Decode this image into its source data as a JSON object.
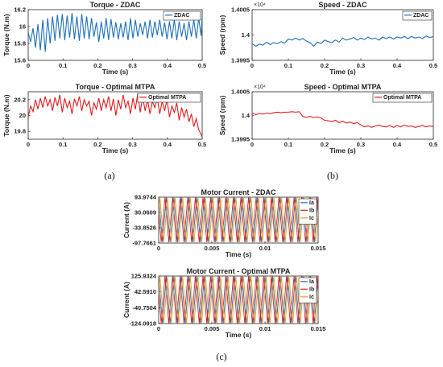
{
  "captions": [
    "(a)",
    "(b)",
    "(c)"
  ],
  "chart_data": [
    {
      "type": "line",
      "title": "Torque - ZDAC",
      "xlabel": "Time (s)",
      "ylabel": "Torque (N.m)",
      "xlim": [
        0,
        0.5
      ],
      "ylim": [
        15.6,
        16.2
      ],
      "xticks": [
        "0",
        "0.1",
        "0.2",
        "0.3",
        "0.4",
        "0.5"
      ],
      "yticks": [
        "15.6",
        "15.8",
        "16",
        "16.2"
      ],
      "legend_position": "top-right",
      "series": [
        {
          "name": "ZDAC",
          "color": "#1f6fb8",
          "x": [
            0,
            0.007,
            0.014,
            0.021,
            0.028,
            0.035,
            0.042,
            0.049,
            0.056,
            0.063,
            0.07,
            0.077,
            0.084,
            0.091,
            0.098,
            0.105,
            0.112,
            0.119,
            0.126,
            0.133,
            0.14,
            0.147,
            0.154,
            0.161,
            0.168,
            0.175,
            0.182,
            0.189,
            0.196,
            0.203,
            0.21,
            0.217,
            0.224,
            0.231,
            0.238,
            0.245,
            0.252,
            0.259,
            0.266,
            0.273,
            0.28,
            0.287,
            0.294,
            0.301,
            0.308,
            0.315,
            0.322,
            0.329,
            0.336,
            0.343,
            0.35,
            0.357,
            0.364,
            0.371,
            0.378,
            0.385,
            0.392,
            0.399,
            0.406,
            0.413,
            0.42,
            0.427,
            0.434,
            0.441,
            0.448,
            0.455,
            0.462,
            0.469,
            0.476,
            0.483,
            0.49,
            0.497,
            0.5
          ],
          "y": [
            15.93,
            15.82,
            15.98,
            15.75,
            16.03,
            15.72,
            16.08,
            15.7,
            16.1,
            15.8,
            16.12,
            15.83,
            16.14,
            15.86,
            16.15,
            15.84,
            16.13,
            15.87,
            16.16,
            15.85,
            16.12,
            15.83,
            16.15,
            15.86,
            16.12,
            15.85,
            16.1,
            15.88,
            16.05,
            15.82,
            16.06,
            15.86,
            16.1,
            15.84,
            16.09,
            15.87,
            16.05,
            15.85,
            16.04,
            15.87,
            16.06,
            15.84,
            16.1,
            15.86,
            16.08,
            15.88,
            16.04,
            15.9,
            16.06,
            15.86,
            16.08,
            15.87,
            16.06,
            15.9,
            16.08,
            15.88,
            16.05,
            15.85,
            16.06,
            15.86,
            16.08,
            15.84,
            16.06,
            15.88,
            16.04,
            15.84,
            16.06,
            15.88,
            16.08,
            15.86,
            16.1,
            15.89,
            16.12
          ]
        }
      ]
    },
    {
      "type": "line",
      "title": "Speed - ZDAC",
      "xlabel": "Time (s)",
      "ylabel": "Speed (rpm)",
      "exponent_label": "×10⁴",
      "xlim": [
        0,
        0.5
      ],
      "ylim": [
        1.3995,
        1.4005
      ],
      "xticks": [
        "0",
        "0.1",
        "0.2",
        "0.3",
        "0.4",
        "0.5"
      ],
      "yticks": [
        "1.3995",
        "1.4",
        "1.4005"
      ],
      "legend_position": "top-right",
      "series": [
        {
          "name": "ZDAC",
          "color": "#1f6fb8",
          "x": [
            0,
            0.01,
            0.02,
            0.03,
            0.04,
            0.05,
            0.06,
            0.07,
            0.08,
            0.09,
            0.1,
            0.11,
            0.12,
            0.13,
            0.14,
            0.15,
            0.16,
            0.17,
            0.18,
            0.19,
            0.2,
            0.21,
            0.22,
            0.23,
            0.24,
            0.25,
            0.26,
            0.27,
            0.28,
            0.29,
            0.3,
            0.31,
            0.32,
            0.33,
            0.34,
            0.35,
            0.36,
            0.37,
            0.38,
            0.39,
            0.4,
            0.41,
            0.42,
            0.43,
            0.44,
            0.45,
            0.46,
            0.47,
            0.48,
            0.49,
            0.5
          ],
          "y": [
            1.39983,
            1.39978,
            1.39982,
            1.3998,
            1.39986,
            1.39981,
            1.39985,
            1.39983,
            1.39987,
            1.39984,
            1.39992,
            1.3999,
            1.39994,
            1.3999,
            1.39993,
            1.39988,
            1.39985,
            1.39978,
            1.39986,
            1.39983,
            1.3999,
            1.39987,
            1.39985,
            1.3999,
            1.39986,
            1.39994,
            1.3999,
            1.39992,
            1.39995,
            1.3999,
            1.39994,
            1.39991,
            1.39996,
            1.39992,
            1.39994,
            1.3999,
            1.39996,
            1.39993,
            1.39996,
            1.39992,
            1.39996,
            1.39994,
            1.39997,
            1.39993,
            1.39997,
            1.39994,
            1.39996,
            1.39993,
            1.39998,
            1.39995,
            1.39997
          ]
        }
      ]
    },
    {
      "type": "line",
      "title": "Torque - Optimal MTPA",
      "xlabel": "Time (s)",
      "ylabel": "Torque (N.m)",
      "xlim": [
        0,
        0.5
      ],
      "ylim": [
        19.7,
        20.3
      ],
      "xticks": [
        "0",
        "0.1",
        "0.2",
        "0.3",
        "0.4",
        "0.5"
      ],
      "yticks": [
        "19.8",
        "20",
        "20.2"
      ],
      "legend_position": "top-right",
      "series": [
        {
          "name": "Optimal MTPA",
          "color": "#e41a1c",
          "x": [
            0,
            0.007,
            0.014,
            0.021,
            0.028,
            0.035,
            0.042,
            0.049,
            0.056,
            0.063,
            0.07,
            0.077,
            0.084,
            0.091,
            0.098,
            0.105,
            0.112,
            0.119,
            0.126,
            0.133,
            0.14,
            0.147,
            0.154,
            0.161,
            0.168,
            0.175,
            0.182,
            0.189,
            0.196,
            0.203,
            0.21,
            0.217,
            0.224,
            0.231,
            0.238,
            0.245,
            0.252,
            0.259,
            0.266,
            0.273,
            0.28,
            0.287,
            0.294,
            0.301,
            0.308,
            0.315,
            0.322,
            0.329,
            0.336,
            0.343,
            0.35,
            0.357,
            0.364,
            0.371,
            0.378,
            0.385,
            0.392,
            0.399,
            0.406,
            0.413,
            0.42,
            0.427,
            0.434,
            0.441,
            0.448,
            0.455,
            0.462,
            0.469,
            0.476,
            0.483,
            0.49,
            0.497,
            0.5
          ],
          "y": [
            19.98,
            20.12,
            20.05,
            20.2,
            20.08,
            20.22,
            20.1,
            20.24,
            20.12,
            20.2,
            20.06,
            20.23,
            20.12,
            20.26,
            20.04,
            20.22,
            20.1,
            20.18,
            20.02,
            20.21,
            20.12,
            20.24,
            20.06,
            20.2,
            20.12,
            20.18,
            20.0,
            20.16,
            20.08,
            20.22,
            20.06,
            20.2,
            20.1,
            20.24,
            20.06,
            20.21,
            20.0,
            20.2,
            20.08,
            20.26,
            20.1,
            20.18,
            20.02,
            20.22,
            20.08,
            20.28,
            20.04,
            20.24,
            20.06,
            20.2,
            20.02,
            20.18,
            20.1,
            20.22,
            20.02,
            20.18,
            20.06,
            20.2,
            19.98,
            20.12,
            20.04,
            20.16,
            19.94,
            20.1,
            19.98,
            20.08,
            19.92,
            20.02,
            19.86,
            19.96,
            19.82,
            19.76,
            19.73
          ]
        }
      ]
    },
    {
      "type": "line",
      "title": "Speed - Optimal MTPA",
      "xlabel": "Time (s)",
      "ylabel": "Speed (rpm)",
      "exponent_label": "×10⁴",
      "xlim": [
        0,
        0.5
      ],
      "ylim": [
        1.3995,
        1.4005
      ],
      "xticks": [
        "0",
        "0.1",
        "0.2",
        "0.3",
        "0.4",
        "0.5"
      ],
      "yticks": [
        "1.3995",
        "1.4",
        "1.4005"
      ],
      "legend_position": "top-right",
      "series": [
        {
          "name": "Optimal MTPA",
          "color": "#e41a1c",
          "x": [
            0,
            0.01,
            0.02,
            0.03,
            0.04,
            0.05,
            0.06,
            0.07,
            0.08,
            0.09,
            0.1,
            0.11,
            0.12,
            0.13,
            0.14,
            0.15,
            0.16,
            0.17,
            0.18,
            0.19,
            0.2,
            0.21,
            0.22,
            0.23,
            0.24,
            0.25,
            0.26,
            0.27,
            0.28,
            0.29,
            0.3,
            0.31,
            0.32,
            0.33,
            0.34,
            0.35,
            0.36,
            0.37,
            0.38,
            0.39,
            0.4,
            0.41,
            0.42,
            0.43,
            0.44,
            0.45,
            0.46,
            0.47,
            0.48,
            0.49,
            0.5
          ],
          "y": [
            1.40005,
            1.40002,
            1.40004,
            1.40003,
            1.40005,
            1.40004,
            1.40006,
            1.40007,
            1.40006,
            1.40007,
            1.40007,
            1.40008,
            1.40007,
            1.40008,
            1.39998,
            1.39996,
            1.39998,
            1.39996,
            1.39997,
            1.39995,
            1.3999,
            1.39989,
            1.39987,
            1.3999,
            1.39985,
            1.39988,
            1.39984,
            1.39986,
            1.39983,
            1.39985,
            1.3998,
            1.39976,
            1.39978,
            1.39975,
            1.39978,
            1.3998,
            1.39977,
            1.39976,
            1.39979,
            1.39975,
            1.39979,
            1.39976,
            1.3998,
            1.39977,
            1.39978,
            1.39975,
            1.39977,
            1.39979,
            1.39976,
            1.39978,
            1.39977
          ]
        }
      ]
    },
    {
      "type": "line",
      "title": "Motor Current - ZDAC",
      "xlabel": "Time (s)",
      "ylabel": "Current (A)",
      "xlim": [
        0,
        0.015
      ],
      "ylim": [
        -97.7661,
        93.9744
      ],
      "xticks": [
        "0",
        "0.005",
        "0.01",
        "0.015"
      ],
      "yticks": [
        "93.9744",
        "30.0609",
        "-33.8526",
        "-97.7661"
      ],
      "legend_position": "top-right",
      "waveform": {
        "amplitude": 93.9744,
        "frequency_hz": 1400,
        "phase_shift_deg": 120
      },
      "series": [
        {
          "name": "Ia",
          "color": "#1f6fb8"
        },
        {
          "name": "Ib",
          "color": "#e41a1c"
        },
        {
          "name": "Ic",
          "color": "#e6a020"
        }
      ]
    },
    {
      "type": "line",
      "title": "Motor Current - Optimal MTPA",
      "xlabel": "Time (s)",
      "ylabel": "Current (A)",
      "xlim": [
        0,
        0.015
      ],
      "ylim": [
        -124.0918,
        125.9324
      ],
      "xticks": [
        "0",
        "0.005",
        "0.01",
        "0.015"
      ],
      "yticks": [
        "125.9324",
        "42.5910",
        "-40.7504",
        "-124.0918"
      ],
      "legend_position": "top-right",
      "waveform": {
        "amplitude": 125.9324,
        "frequency_hz": 1400,
        "phase_shift_deg": 120
      },
      "series": [
        {
          "name": "Ia",
          "color": "#1f6fb8"
        },
        {
          "name": "Ib",
          "color": "#e41a1c"
        },
        {
          "name": "Ic",
          "color": "#e6a020"
        }
      ]
    }
  ]
}
